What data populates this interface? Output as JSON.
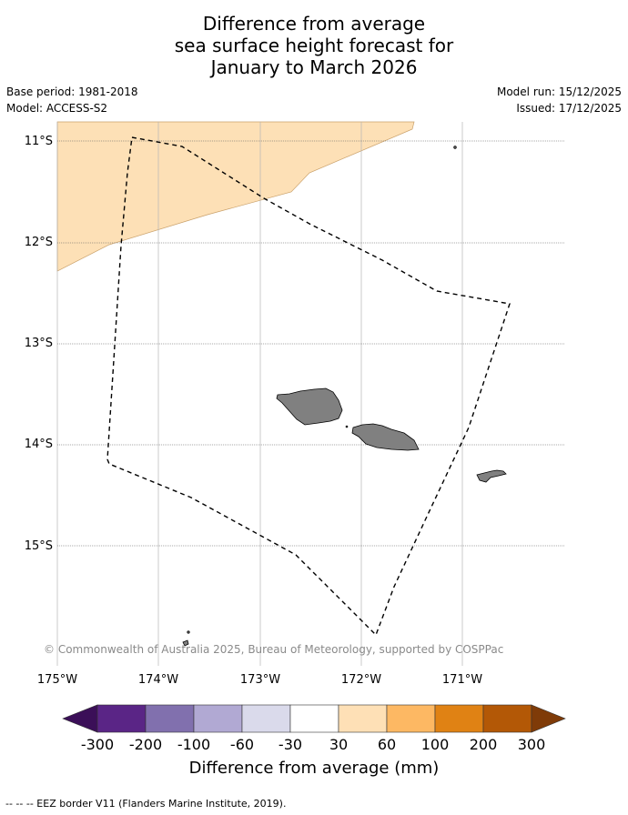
{
  "title": {
    "line1": "Difference from average",
    "line2": "sea surface height forecast for",
    "line3": "January to March 2026"
  },
  "meta": {
    "base_period": "Base period: 1981-2018",
    "model": "Model: ACCESS-S2",
    "model_run": "Model run: 15/12/2025",
    "issued": "Issued: 17/12/2025"
  },
  "map": {
    "lat_labels": [
      "11°S",
      "12°S",
      "13°S",
      "14°S",
      "15°S"
    ],
    "lon_labels": [
      "175°W",
      "174°W",
      "173°W",
      "172°W",
      "171°W"
    ],
    "copyright": "© Commonwealth of Australia 2025, Bureau of Meteorology, supported by COSPPac",
    "colors": {
      "land": "#808080",
      "anomaly_fill": "#fde0b6",
      "eez_border": "#000000",
      "grid": "#b0b0b0"
    }
  },
  "colorbar": {
    "tick_labels": [
      "-300",
      "-200",
      "-100",
      "-60",
      "-30",
      "30",
      "60",
      "100",
      "200",
      "300"
    ],
    "colors": [
      "#3b0f58",
      "#5a2586",
      "#8170ae",
      "#b1a9d3",
      "#dadaeb",
      "#ffffff",
      "#fee0b6",
      "#fdb863",
      "#e08214",
      "#b35806",
      "#7f3b08"
    ],
    "title": "Difference from average (mm)"
  },
  "footnote": "--  --  -- EEZ border V11 (Flanders Marine Institute, 2019)."
}
